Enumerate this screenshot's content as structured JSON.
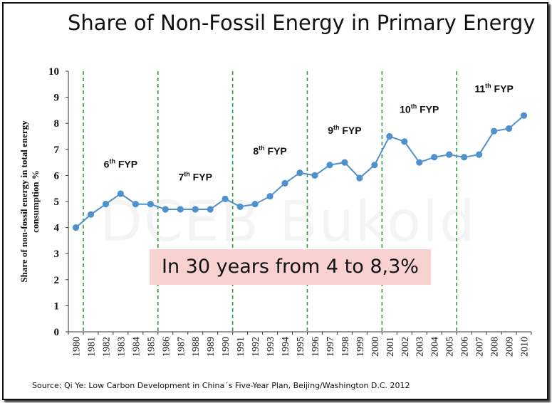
{
  "title": "Share of Non-Fossil Energy in Primary Energy",
  "highlight": "In 30 years from 4 to 8,3%",
  "source": "Source: Qi Ye: Low Carbon Development in China´s  Five-Year Plan, Beijing/Washington D.C. 2012",
  "watermark": "DCEB Bukold",
  "colors": {
    "series": "#4f91cd",
    "divider": "#2e9e3e",
    "highlight_bg": "#f7d2d0"
  },
  "chart_data": {
    "type": "line",
    "ylabel": "Share of non-fossil energy in total energy consumption  %",
    "ylabel_lines": [
      "Share of non-fossil energy in total energy",
      "consumption  %"
    ],
    "xlabel": "",
    "ylim": [
      0,
      10
    ],
    "yticks": [
      "0",
      "1",
      "2",
      "3",
      "4",
      "5",
      "6",
      "7",
      "8",
      "9",
      "10"
    ],
    "grid": false,
    "x": [
      "1980",
      "1981",
      "1982",
      "1983",
      "1984",
      "1985",
      "1986",
      "1987",
      "1988",
      "1989",
      "1990",
      "1991",
      "1992",
      "1993",
      "1994",
      "1995",
      "1996",
      "1997",
      "1998",
      "1999",
      "2000",
      "2001",
      "2002",
      "2003",
      "2004",
      "2005",
      "2006",
      "2007",
      "2008",
      "2009",
      "2010"
    ],
    "series": [
      {
        "values": [
          4.0,
          4.5,
          4.9,
          5.3,
          4.9,
          4.9,
          4.7,
          4.7,
          4.7,
          4.7,
          5.1,
          4.8,
          4.9,
          5.2,
          5.7,
          6.1,
          6.0,
          6.4,
          6.5,
          5.9,
          6.4,
          7.5,
          7.3,
          6.5,
          6.7,
          6.8,
          6.7,
          6.8,
          7.7,
          7.8,
          8.3
        ]
      }
    ],
    "dividers_after_index": [
      0.5,
      5.5,
      10.5,
      15.5,
      20.5,
      25.5
    ],
    "plans": [
      {
        "num": "6",
        "sup": "th",
        "suffix": " FYP",
        "x_center": 3.0,
        "y": 6.3
      },
      {
        "num": "7",
        "sup": "th",
        "suffix": " FYP",
        "x_center": 8.0,
        "y": 5.8
      },
      {
        "num": "8",
        "sup": "th",
        "suffix": " FYP",
        "x_center": 13.0,
        "y": 6.8
      },
      {
        "num": "9",
        "sup": "th",
        "suffix": " FYP",
        "x_center": 18.0,
        "y": 7.6
      },
      {
        "num": "10",
        "sup": "th",
        "suffix": " FYP",
        "x_center": 23.0,
        "y": 8.4
      },
      {
        "num": "11",
        "sup": "th",
        "suffix": " FYP",
        "x_center": 28.0,
        "y": 9.2
      }
    ]
  }
}
